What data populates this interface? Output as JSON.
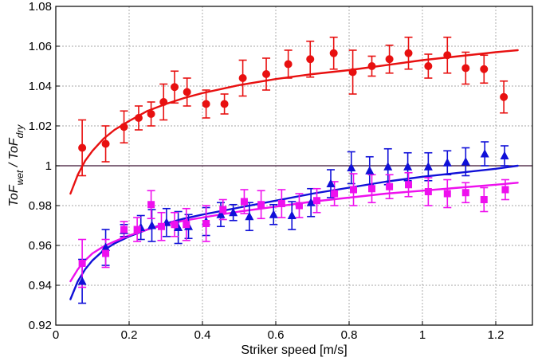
{
  "chart_data": {
    "type": "scatter",
    "xlabel": "Striker speed [m/s]",
    "ylabel": {
      "main1": "ToF",
      "sub1": "wet",
      "sep": " / ToF",
      "sub2": "dry"
    },
    "xlim": [
      0,
      1.3
    ],
    "ylim": [
      0.92,
      1.08
    ],
    "xticks": [
      0,
      0.2,
      0.4,
      0.6,
      0.8,
      1,
      1.2
    ],
    "xtick_labels": [
      "0",
      "0.2",
      "0.4",
      "0.6",
      "0.8",
      "1",
      "1.2"
    ],
    "yticks": [
      0.92,
      0.94,
      0.96,
      0.98,
      1.0,
      1.02,
      1.04,
      1.06,
      1.08
    ],
    "ytick_labels": [
      "0.92",
      "0.94",
      "0.96",
      "0.98",
      "1",
      "1.02",
      "1.04",
      "1.06",
      "1.08"
    ],
    "grid": true,
    "reference_line": {
      "y": 1.0,
      "color": "#3a1030"
    },
    "series": [
      {
        "name": "red",
        "color": "#e81010",
        "marker": "circle",
        "x": [
          0.072,
          0.136,
          0.186,
          0.226,
          0.26,
          0.294,
          0.324,
          0.358,
          0.41,
          0.46,
          0.51,
          0.574,
          0.634,
          0.694,
          0.758,
          0.81,
          0.862,
          0.91,
          0.962,
          1.016,
          1.068,
          1.118,
          1.168,
          1.222
        ],
        "y": [
          1.009,
          1.011,
          1.0195,
          1.024,
          1.026,
          1.032,
          1.0395,
          1.037,
          1.031,
          1.031,
          1.044,
          1.046,
          1.051,
          1.0535,
          1.0565,
          1.047,
          1.05,
          1.0535,
          1.0565,
          1.05,
          1.0555,
          1.049,
          1.0485,
          1.0345
        ],
        "err": [
          0.014,
          0.009,
          0.008,
          0.006,
          0.006,
          0.009,
          0.008,
          0.007,
          0.007,
          0.005,
          0.009,
          0.008,
          0.007,
          0.009,
          0.008,
          0.011,
          0.005,
          0.007,
          0.008,
          0.006,
          0.009,
          0.008,
          0.007,
          0.008
        ],
        "fit": {
          "x": [
            0.04,
            0.06,
            0.08,
            0.1,
            0.13,
            0.16,
            0.2,
            0.25,
            0.3,
            0.35,
            0.4,
            0.5,
            0.6,
            0.7,
            0.8,
            0.9,
            1.0,
            1.1,
            1.2,
            1.26
          ],
          "y": [
            0.986,
            0.9955,
            1.0025,
            1.0075,
            1.0135,
            1.018,
            1.0225,
            1.0275,
            1.031,
            1.034,
            1.0365,
            1.0405,
            1.0435,
            1.046,
            1.048,
            1.0505,
            1.053,
            1.055,
            1.057,
            1.058
          ]
        }
      },
      {
        "name": "blue",
        "color": "#1010d8",
        "marker": "triangle",
        "x": [
          0.072,
          0.136,
          0.186,
          0.232,
          0.262,
          0.302,
          0.334,
          0.362,
          0.41,
          0.45,
          0.484,
          0.528,
          0.594,
          0.644,
          0.696,
          0.75,
          0.806,
          0.856,
          0.906,
          0.96,
          1.016,
          1.068,
          1.118,
          1.17,
          1.224
        ],
        "y": [
          0.942,
          0.959,
          0.9675,
          0.969,
          0.97,
          0.9715,
          0.969,
          0.9695,
          0.972,
          0.9755,
          0.9765,
          0.9745,
          0.9755,
          0.975,
          0.9815,
          0.991,
          0.999,
          0.9975,
          0.9995,
          0.9995,
          0.9995,
          1.0015,
          1.002,
          1.006,
          1.005
        ],
        "err": [
          0.011,
          0.009,
          0.003,
          0.006,
          0.008,
          0.007,
          0.008,
          0.006,
          0.007,
          0.006,
          0.004,
          0.007,
          0.005,
          0.007,
          0.007,
          0.007,
          0.008,
          0.007,
          0.009,
          0.007,
          0.007,
          0.006,
          0.007,
          0.006,
          0.005
        ],
        "fit": {
          "x": [
            0.04,
            0.06,
            0.08,
            0.1,
            0.13,
            0.16,
            0.2,
            0.25,
            0.3,
            0.35,
            0.4,
            0.5,
            0.6,
            0.7,
            0.8,
            0.9,
            1.0,
            1.1,
            1.2,
            1.26
          ],
          "y": [
            0.933,
            0.942,
            0.948,
            0.9525,
            0.9575,
            0.961,
            0.9645,
            0.968,
            0.971,
            0.9735,
            0.9755,
            0.979,
            0.9825,
            0.986,
            0.989,
            0.992,
            0.9945,
            0.9965,
            0.9985,
            1.0
          ]
        }
      },
      {
        "name": "magenta",
        "color": "#ee10ee",
        "marker": "square",
        "x": [
          0.072,
          0.136,
          0.186,
          0.222,
          0.26,
          0.288,
          0.324,
          0.356,
          0.41,
          0.456,
          0.514,
          0.56,
          0.616,
          0.664,
          0.712,
          0.76,
          0.812,
          0.862,
          0.91,
          0.962,
          1.016,
          1.068,
          1.118,
          1.168,
          1.226
        ],
        "y": [
          0.951,
          0.956,
          0.968,
          0.968,
          0.9805,
          0.9695,
          0.9705,
          0.9705,
          0.971,
          0.978,
          0.982,
          0.9805,
          0.981,
          0.98,
          0.9825,
          0.986,
          0.988,
          0.9885,
          0.9895,
          0.9905,
          0.987,
          0.986,
          0.9865,
          0.983,
          0.988
        ],
        "err": [
          0.012,
          0.007,
          0.004,
          0.006,
          0.007,
          0.007,
          0.006,
          0.008,
          0.009,
          0.005,
          0.006,
          0.007,
          0.007,
          0.006,
          0.006,
          0.006,
          0.008,
          0.007,
          0.006,
          0.006,
          0.007,
          0.007,
          0.005,
          0.006,
          0.005
        ],
        "fit": {
          "x": [
            0.04,
            0.06,
            0.08,
            0.1,
            0.13,
            0.16,
            0.2,
            0.25,
            0.3,
            0.35,
            0.4,
            0.5,
            0.6,
            0.7,
            0.8,
            0.9,
            1.0,
            1.1,
            1.2,
            1.26
          ],
          "y": [
            0.942,
            0.948,
            0.9525,
            0.956,
            0.9595,
            0.962,
            0.965,
            0.968,
            0.9705,
            0.9725,
            0.974,
            0.977,
            0.9795,
            0.982,
            0.984,
            0.986,
            0.9875,
            0.989,
            0.9905,
            0.9915
          ]
        }
      }
    ]
  }
}
